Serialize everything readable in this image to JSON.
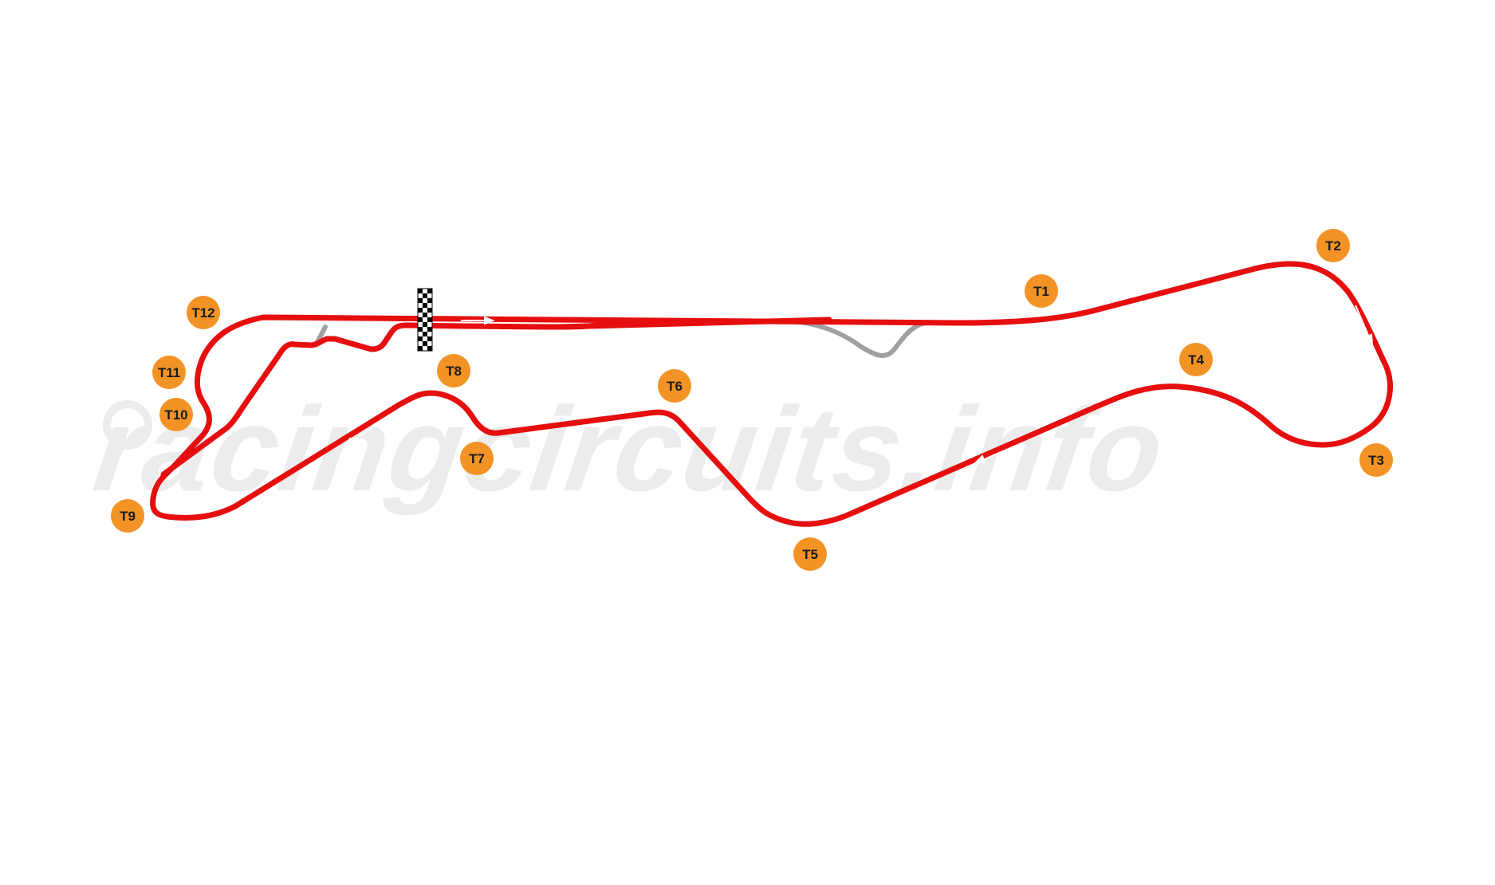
{
  "watermark": {
    "text": "racingcircuits.info"
  },
  "colors": {
    "track": "#e60e0e",
    "pit_lane": "#a0a0a0",
    "turn_marker": "#f39325",
    "turn_text": "#1a1a1a",
    "watermark": "#ececec",
    "arrow": "#ffffff"
  },
  "icons": {
    "start_finish": "checkered-flag-icon",
    "direction": "direction-arrow-icon"
  },
  "turns": [
    {
      "id": "T1",
      "label": "T1"
    },
    {
      "id": "T2",
      "label": "T2"
    },
    {
      "id": "T3",
      "label": "T3"
    },
    {
      "id": "T4",
      "label": "T4"
    },
    {
      "id": "T5",
      "label": "T5"
    },
    {
      "id": "T6",
      "label": "T6"
    },
    {
      "id": "T7",
      "label": "T7"
    },
    {
      "id": "T8",
      "label": "T8"
    },
    {
      "id": "T9",
      "label": "T9"
    },
    {
      "id": "T10",
      "label": "T10"
    },
    {
      "id": "T11",
      "label": "T11"
    },
    {
      "id": "T12",
      "label": "T12"
    }
  ]
}
